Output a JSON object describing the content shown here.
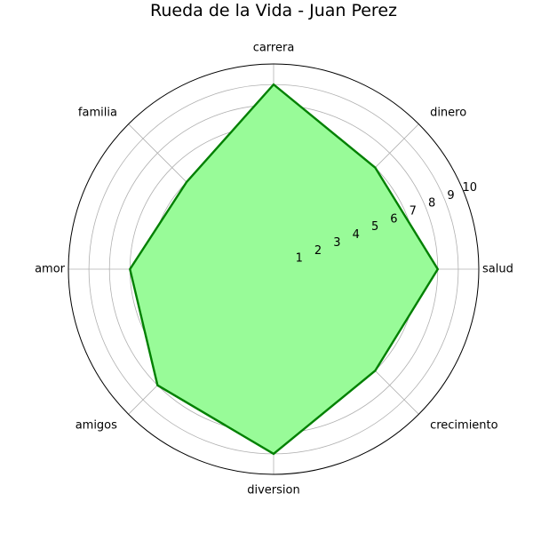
{
  "chart_data": {
    "type": "radar",
    "title": "Rueda de la Vida - Juan Perez",
    "categories": [
      "salud",
      "dinero",
      "carrera",
      "familia",
      "amor",
      "amigos",
      "diversion",
      "crecimiento"
    ],
    "series": [
      {
        "values": [
          8,
          7,
          9,
          6,
          7,
          8,
          9,
          7
        ]
      }
    ],
    "rlim": [
      0,
      10
    ],
    "rticks": [
      "1",
      "2",
      "3",
      "4",
      "5",
      "6",
      "7",
      "8",
      "9",
      "10"
    ],
    "grid": true,
    "colors": {
      "line": "#008000",
      "fill": "#98fb98",
      "grid": "#b0b0b0",
      "frame": "#000000"
    }
  }
}
